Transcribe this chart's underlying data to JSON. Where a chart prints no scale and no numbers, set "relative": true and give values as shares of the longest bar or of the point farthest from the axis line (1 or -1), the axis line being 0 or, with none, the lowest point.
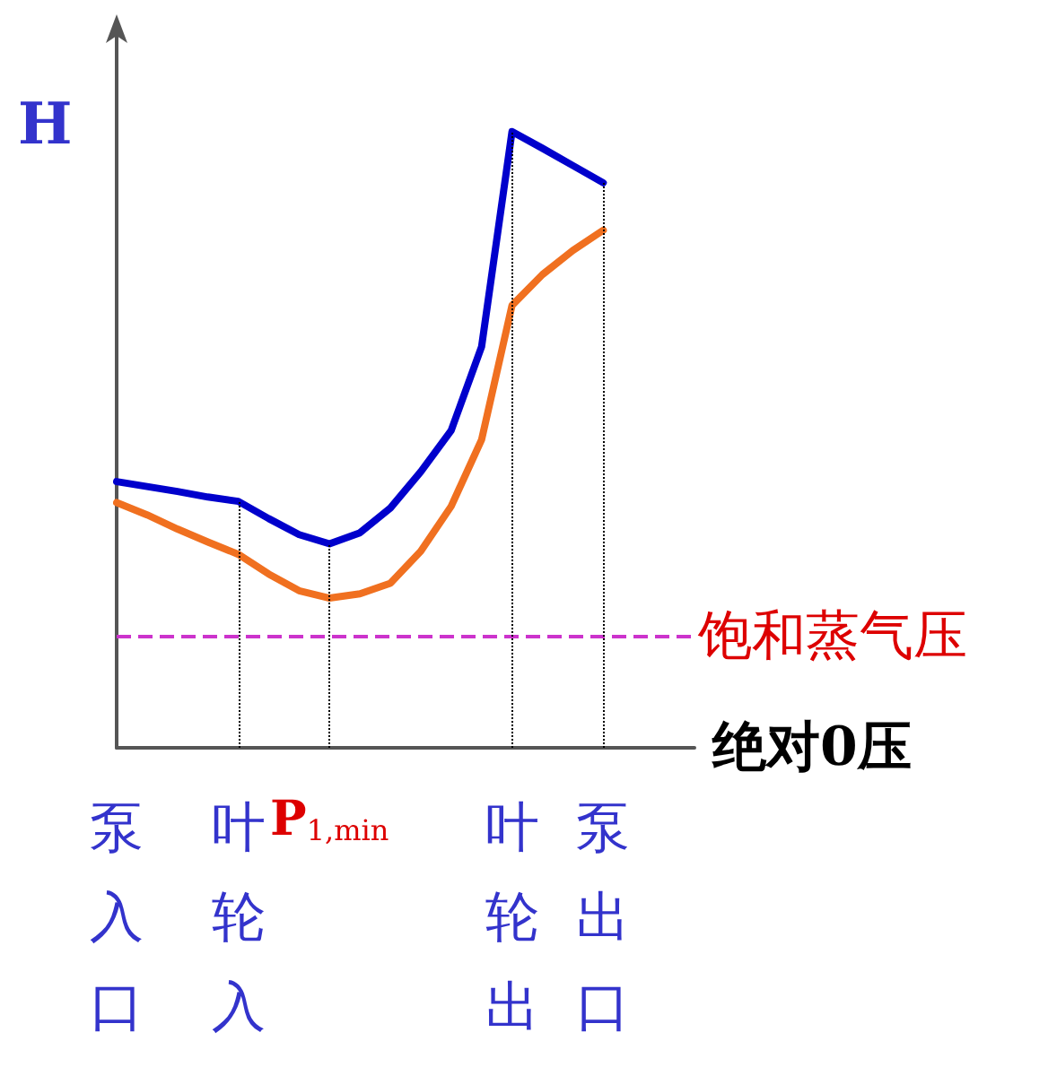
{
  "chart_data": {
    "type": "line",
    "relative": true,
    "ylabel": "H",
    "xlabel": "绝对0压",
    "categories": [
      "泵入口",
      null,
      null,
      null,
      "叶轮入",
      null,
      null,
      "P$_{1,min}$",
      null,
      null,
      null,
      null,
      null,
      "叶轮出",
      null,
      null,
      "泵出口",
      null,
      null,
      null
    ],
    "series": [
      {
        "color": "#0000cc",
        "values": [
          0.432,
          0.424,
          0.416,
          0.407,
          0.4,
          0.372,
          0.346,
          0.331,
          0.349,
          0.389,
          0.448,
          0.515,
          0.651,
          1,
          0.973,
          0.945,
          0.917,
          null,
          null,
          null
        ]
      },
      {
        "color": "#f07020",
        "values": [
          0.398,
          0.378,
          0.355,
          0.334,
          0.314,
          0.282,
          0.255,
          0.243,
          0.25,
          0.267,
          0.319,
          0.392,
          0.5,
          0.718,
          0.768,
          0.807,
          0.84,
          null,
          null,
          null
        ]
      }
    ],
    "ref_lines": [
      {
        "axis": "y",
        "value": 0.18,
        "label": "饱和蒸气压",
        "color": "#cc33cc",
        "line_style": "dashed"
      },
      {
        "axis": "x",
        "value": "叶轮入",
        "color": "#000000",
        "line_style": "dotted"
      },
      {
        "axis": "x",
        "value": "P$_{1,min}$",
        "color": "#000000",
        "line_style": "dotted"
      },
      {
        "axis": "x",
        "value": "叶轮出",
        "color": "#000000",
        "line_style": "dotted"
      },
      {
        "axis": "x",
        "value": "泵出口",
        "color": "#000000",
        "line_style": "dotted"
      }
    ],
    "marker": "none",
    "line_style": "solid"
  }
}
